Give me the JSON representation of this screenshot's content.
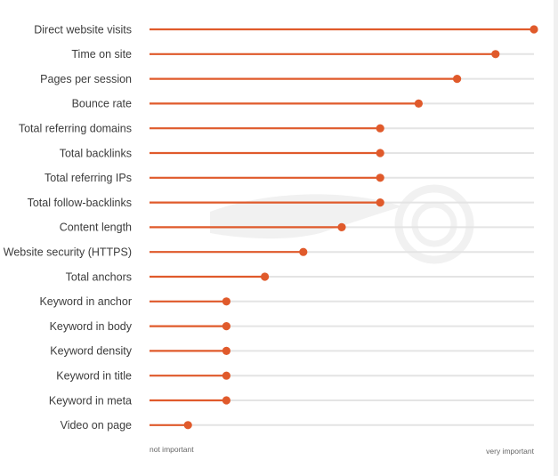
{
  "chart_data": {
    "type": "lollipop",
    "orientation": "horizontal",
    "categories": [
      "Direct website visits",
      "Time on site",
      "Pages per session",
      "Bounce rate",
      "Total referring domains",
      "Total backlinks",
      "Total referring IPs",
      "Total follow-backlinks",
      "Content length",
      "Website security (HTTPS)",
      "Total anchors",
      "Keyword in anchor",
      "Keyword in body",
      "Keyword density",
      "Keyword in title",
      "Keyword in meta",
      "Video on page"
    ],
    "values": [
      100,
      90,
      80,
      70,
      60,
      60,
      60,
      60,
      50,
      40,
      30,
      20,
      20,
      20,
      20,
      20,
      10
    ],
    "xlim": [
      0,
      100
    ],
    "axis_min_label": "not important",
    "axis_max_label": "very important",
    "title": "",
    "xlabel": "",
    "ylabel": "",
    "grid": true,
    "legend": "none",
    "colors": {
      "accent": "#e05a2b",
      "track": "#e4e4e4",
      "label": "#3c3c3c",
      "watermark": "#f1f1f1"
    }
  }
}
